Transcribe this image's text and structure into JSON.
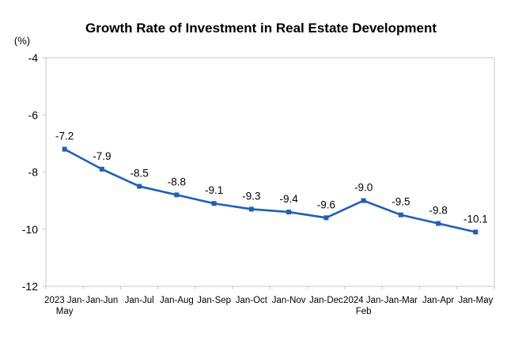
{
  "chart_data": {
    "type": "line",
    "title": "Growth Rate of Investment in Real Estate Development",
    "ylabel": "(%)",
    "xlabel": "",
    "ylim": [
      -12,
      -4
    ],
    "yticks": [
      -4,
      -6,
      -8,
      -10,
      -12
    ],
    "grid": false,
    "legend": "none",
    "categories": [
      [
        "2023 Jan-",
        "May"
      ],
      [
        "Jan-Jun"
      ],
      [
        "Jan-Jul"
      ],
      [
        "Jan-Aug"
      ],
      [
        "Jan-Sep"
      ],
      [
        "Jan-Oct"
      ],
      [
        "Jan-Nov"
      ],
      [
        "Jan-Dec"
      ],
      [
        "2024 Jan-",
        "Feb"
      ],
      [
        "Jan-Mar"
      ],
      [
        "Jan-Apr"
      ],
      [
        "Jan-May"
      ]
    ],
    "series": [
      {
        "name": "Growth Rate of Investment in Real Estate Development",
        "color": "#1f5fb4",
        "values": [
          -7.2,
          -7.9,
          -8.5,
          -8.8,
          -9.1,
          -9.3,
          -9.4,
          -9.6,
          -9.0,
          -9.5,
          -9.8,
          -10.1
        ],
        "labels": [
          "-7.2",
          "-7.9",
          "-8.5",
          "-8.8",
          "-9.1",
          "-9.3",
          "-9.4",
          "-9.6",
          "-9.0",
          "-9.5",
          "-9.8",
          "-10.1"
        ]
      }
    ]
  }
}
